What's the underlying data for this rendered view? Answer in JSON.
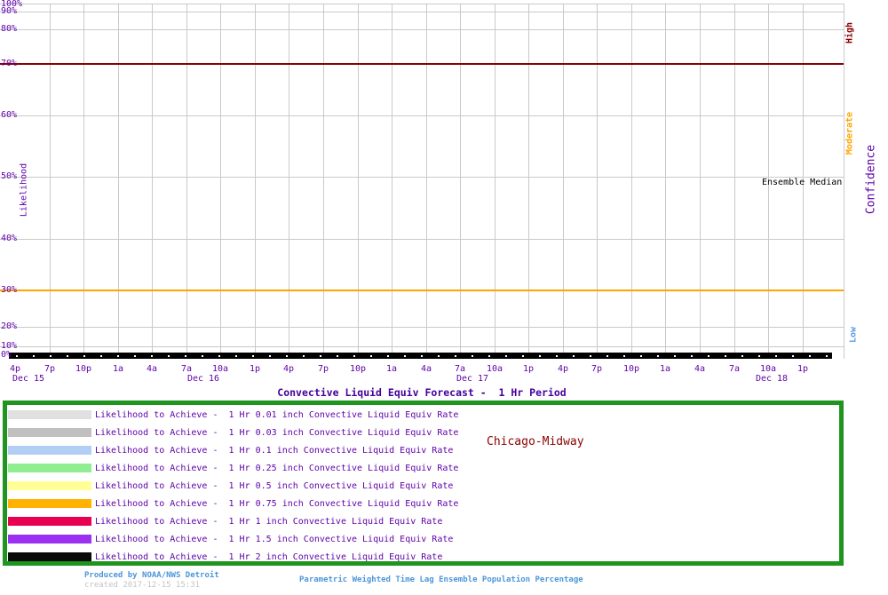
{
  "title": "Convective Liquid Equiv Forecast -  1 Hr Period",
  "station_label": "Chicago-Midway",
  "y_axis": {
    "label": "Likelihood",
    "tick_labels": [
      "100%",
      "90%",
      "80%",
      "70%",
      "60%",
      "50%",
      "40%",
      "30%",
      "20%",
      "10%",
      "0%"
    ],
    "tick_pcts": [
      100,
      90,
      80,
      70,
      60,
      50,
      40,
      30,
      20,
      10,
      0
    ]
  },
  "x_axis": {
    "time_tick_labels": [
      "4p",
      "7p",
      "10p",
      "1a",
      "4a",
      "7a",
      "10a",
      "1p",
      "4p",
      "7p",
      "10p",
      "1a",
      "4a",
      "7a",
      "10a",
      "1p",
      "4p",
      "7p",
      "10p",
      "1a",
      "4a",
      "7a",
      "10a",
      "1p"
    ],
    "date_labels": [
      "Dec 15",
      "Dec 16",
      "Dec 17",
      "Dec 18"
    ]
  },
  "annotations": {
    "ensemble_median": "Ensemble Median"
  },
  "confidence_axis": {
    "label": "Confidence",
    "high_label": "High",
    "moderate_label": "Moderate",
    "low_label": "Low",
    "high_color": "#8B0000",
    "moderate_color": "#FFA500",
    "low_color": "#5C9CE6",
    "high_threshold_pct": 70,
    "low_threshold_pct": 30
  },
  "legend": {
    "border_color": "#1F941F",
    "items": [
      {
        "color": "#E0E0E0",
        "label": "Likelihood to Achieve -  1 Hr 0.01 inch Convective Liquid Equiv Rate"
      },
      {
        "color": "#C0C0C0",
        "label": "Likelihood to Achieve -  1 Hr 0.03 inch Convective Liquid Equiv Rate"
      },
      {
        "color": "#B3CEF5",
        "label": "Likelihood to Achieve -  1 Hr 0.1 inch Convective Liquid Equiv Rate"
      },
      {
        "color": "#90EE90",
        "label": "Likelihood to Achieve -  1 Hr 0.25 inch Convective Liquid Equiv Rate"
      },
      {
        "color": "#FFFF96",
        "label": "Likelihood to Achieve -  1 Hr 0.5 inch Convective Liquid Equiv Rate"
      },
      {
        "color": "#FFB300",
        "label": "Likelihood to Achieve -  1 Hr 0.75 inch Convective Liquid Equiv Rate"
      },
      {
        "color": "#E90050",
        "label": "Likelihood to Achieve -  1 Hr 1 inch Convective Liquid Equiv Rate"
      },
      {
        "color": "#9B30F2",
        "label": "Likelihood to Achieve -  1 Hr 1.5 inch Convective Liquid Equiv Rate"
      },
      {
        "color": "#0A0A0A",
        "label": "Likelihood to Achieve -  1 Hr 2 inch Convective Liquid Equiv Rate"
      }
    ]
  },
  "footer": {
    "produced_by": "Produced by NOAA/NWS Detroit",
    "created": "created 2017-12-15 15:31",
    "method": "Parametric Weighted Time Lag Ensemble Population Percentage"
  },
  "chart_data": {
    "type": "line",
    "title": "Convective Liquid Equiv Forecast -  1 Hr Period",
    "site": "Chicago-Midway",
    "x_tick_labels": [
      "4p",
      "7p",
      "10p",
      "1a",
      "4a",
      "7a",
      "10a",
      "1p",
      "4p",
      "7p",
      "10p",
      "1a",
      "4a",
      "7a",
      "10a",
      "1p",
      "4p",
      "7p",
      "10p",
      "1a",
      "4a",
      "7a",
      "10a",
      "1p"
    ],
    "x_dates": [
      "Dec 15",
      "Dec 16",
      "Dec 17",
      "Dec 18"
    ],
    "x_interval_hours": 3,
    "ylabel": "Likelihood",
    "ylim_pct": [
      0,
      100
    ],
    "y_ticks_pct": [
      0,
      10,
      20,
      30,
      40,
      50,
      60,
      70,
      80,
      90,
      100
    ],
    "y_scale": "probit",
    "grid": true,
    "reference_lines": [
      {
        "label": "High confidence threshold",
        "value_pct": 70,
        "color": "#8B0000"
      },
      {
        "label": "Moderate/Low confidence threshold",
        "value_pct": 30,
        "color": "#FFA500"
      }
    ],
    "series": [
      {
        "name": "Likelihood to Achieve -  1 Hr 0.01 inch Convective Liquid Equiv Rate",
        "color": "#E0E0E0",
        "constant_value_pct": 0
      },
      {
        "name": "Likelihood to Achieve -  1 Hr 0.03 inch Convective Liquid Equiv Rate",
        "color": "#C0C0C0",
        "constant_value_pct": 0
      },
      {
        "name": "Likelihood to Achieve -  1 Hr 0.1 inch Convective Liquid Equiv Rate",
        "color": "#B3CEF5",
        "constant_value_pct": 0
      },
      {
        "name": "Likelihood to Achieve -  1 Hr 0.25 inch Convective Liquid Equiv Rate",
        "color": "#90EE90",
        "constant_value_pct": 0
      },
      {
        "name": "Likelihood to Achieve -  1 Hr 0.5 inch Convective Liquid Equiv Rate",
        "color": "#FFFF96",
        "constant_value_pct": 0
      },
      {
        "name": "Likelihood to Achieve -  1 Hr 0.75 inch Convective Liquid Equiv Rate",
        "color": "#FFB300",
        "constant_value_pct": 0
      },
      {
        "name": "Likelihood to Achieve -  1 Hr 1 inch Convective Liquid Equiv Rate",
        "color": "#E90050",
        "constant_value_pct": 0
      },
      {
        "name": "Likelihood to Achieve -  1 Hr 1.5 inch Convective Liquid Equiv Rate",
        "color": "#9B30F2",
        "constant_value_pct": 0
      },
      {
        "name": "Likelihood to Achieve -  1 Hr 2 inch Convective Liquid Equiv Rate",
        "color": "#0A0A0A",
        "constant_value_pct": 0
      },
      {
        "name": "Ensemble Median",
        "color": "#000000",
        "constant_value_pct": 0
      }
    ],
    "note": "All likelihood traces are flat at 0% for the entire forecast period; they overlap along the x-axis as a single thick black line."
  }
}
